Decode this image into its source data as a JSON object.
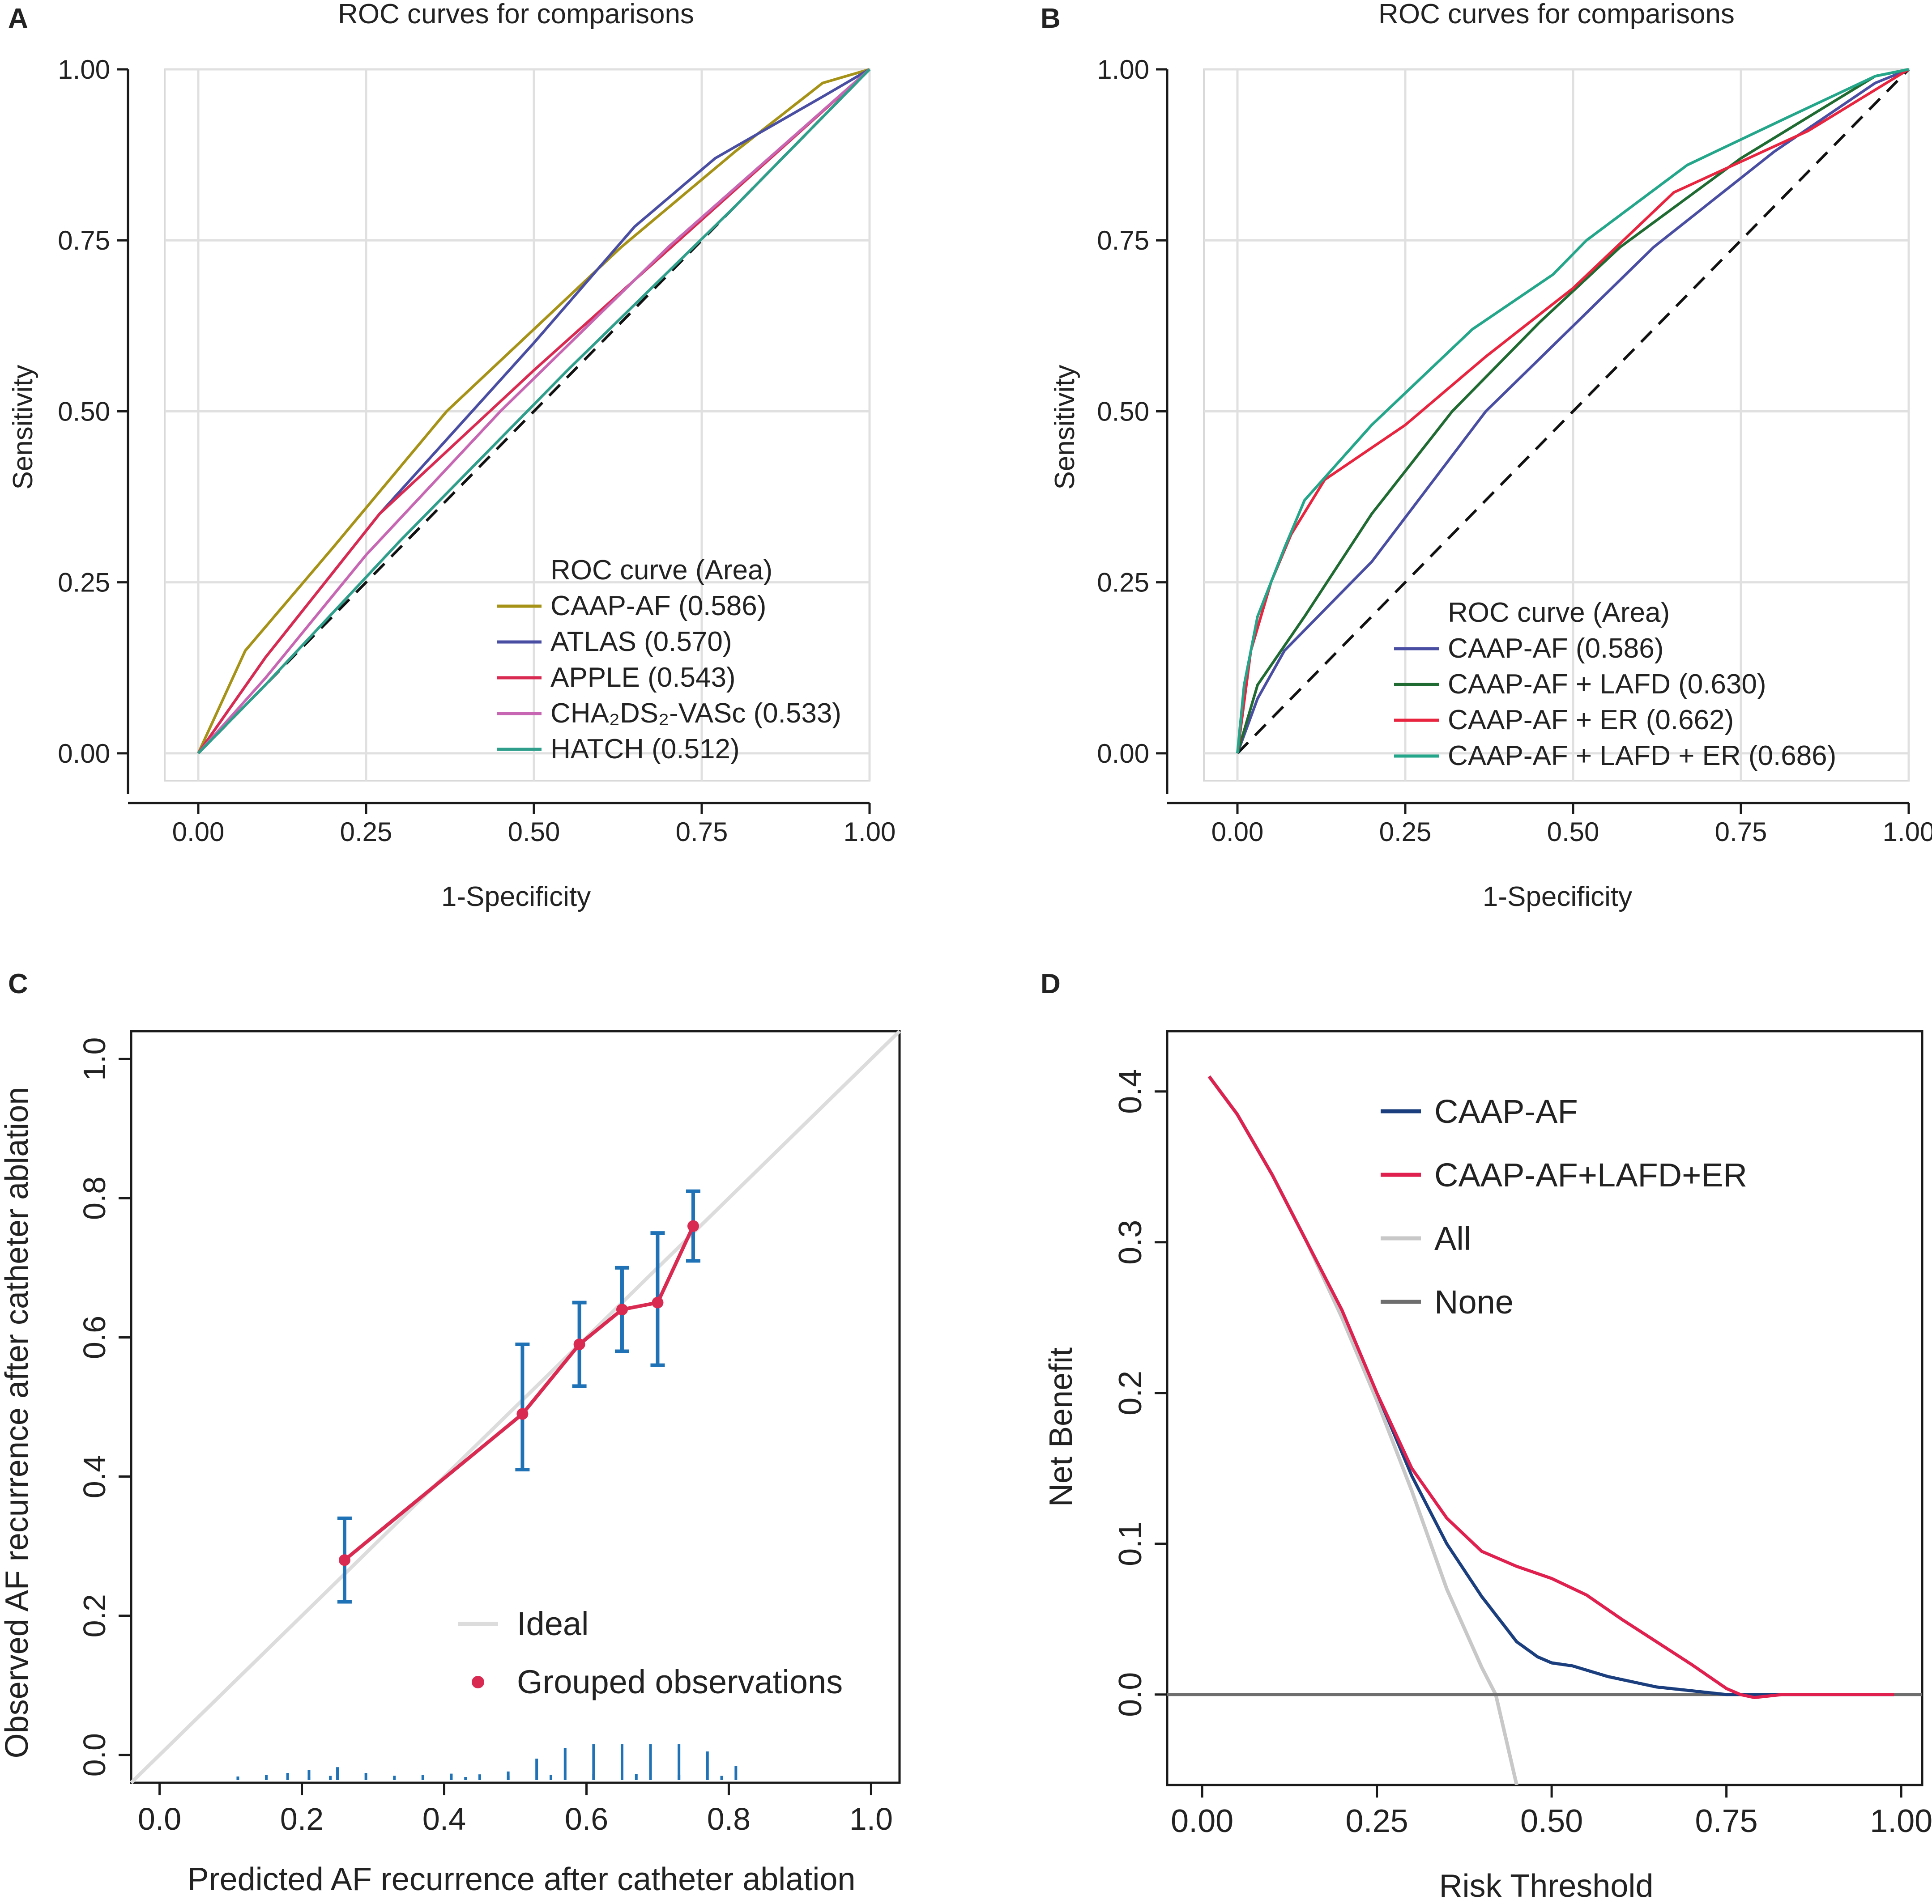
{
  "colors": {
    "olive": "#a59216",
    "indigo": "#4a4ea3",
    "crimson": "#d92a52",
    "orchid": "#c767b3",
    "teal": "#2f9f8c",
    "green": "#1f6b32",
    "red": "#e8243f",
    "sea": "#23a68a",
    "navy": "#1b3f7e",
    "pink": "#e0204e",
    "light_gray": "#c8c8c8",
    "dark_gray": "#6e6e6e",
    "blue_bar": "#1f72b6",
    "ideal": "#dcdcdc"
  },
  "chart_data": [
    {
      "panel_label": "A",
      "type": "line",
      "title": "ROC curves for comparisons",
      "xlabel": "1-Specificity",
      "ylabel": "Sensitivity",
      "xlim": [
        -0.05,
        1.0
      ],
      "ylim": [
        -0.04,
        1.0
      ],
      "xticks": [
        0,
        0.25,
        0.5,
        0.75,
        1
      ],
      "xtick_labels": [
        "0.00",
        "0.25",
        "0.50",
        "0.75",
        "1.00"
      ],
      "yticks": [
        0,
        0.25,
        0.5,
        0.75,
        1
      ],
      "ytick_labels": [
        "0.00",
        "0.25",
        "0.50",
        "0.75",
        "1.00"
      ],
      "grid": true,
      "legend_title": "ROC curve (Area)",
      "legend_position": "bottom-right",
      "reference_line": true,
      "series": [
        {
          "name": "CAAP-AF (0.586)",
          "color_key": "olive",
          "x": [
            0,
            0.07,
            0.2,
            0.37,
            0.63,
            0.8,
            0.93,
            1
          ],
          "y": [
            0,
            0.15,
            0.3,
            0.5,
            0.74,
            0.88,
            0.98,
            1
          ]
        },
        {
          "name": "ATLAS (0.570)",
          "color_key": "indigo",
          "x": [
            0,
            0.1,
            0.27,
            0.5,
            0.65,
            0.77,
            0.93,
            1
          ],
          "y": [
            0,
            0.14,
            0.35,
            0.6,
            0.77,
            0.87,
            0.96,
            1
          ]
        },
        {
          "name": "APPLE (0.543)",
          "color_key": "crimson",
          "x": [
            0,
            0.1,
            0.27,
            0.5,
            0.75,
            1
          ],
          "y": [
            0,
            0.14,
            0.35,
            0.56,
            0.78,
            1
          ]
        },
        {
          "name": "CHA₂DS₂-VASc (0.533)",
          "color_key": "orchid",
          "x": [
            0,
            0.1,
            0.25,
            0.45,
            0.7,
            1
          ],
          "y": [
            0,
            0.11,
            0.29,
            0.5,
            0.74,
            1
          ]
        },
        {
          "name": "HATCH (0.512)",
          "color_key": "teal",
          "x": [
            0,
            0.1,
            0.3,
            0.55,
            0.8,
            1
          ],
          "y": [
            0,
            0.1,
            0.31,
            0.56,
            0.8,
            1
          ]
        }
      ]
    },
    {
      "panel_label": "B",
      "type": "line",
      "title": "ROC curves for comparisons",
      "xlabel": "1-Specificity",
      "ylabel": "Sensitivity",
      "xlim": [
        -0.05,
        1.0
      ],
      "ylim": [
        -0.04,
        1.0
      ],
      "xticks": [
        0,
        0.25,
        0.5,
        0.75,
        1
      ],
      "xtick_labels": [
        "0.00",
        "0.25",
        "0.50",
        "0.75",
        "1.00"
      ],
      "yticks": [
        0,
        0.25,
        0.5,
        0.75,
        1
      ],
      "ytick_labels": [
        "0.00",
        "0.25",
        "0.50",
        "0.75",
        "1.00"
      ],
      "grid": true,
      "legend_title": "ROC curve (Area)",
      "legend_position": "bottom-right",
      "reference_line": true,
      "series": [
        {
          "name": "CAAP-AF (0.586)",
          "color_key": "indigo",
          "x": [
            0,
            0.03,
            0.07,
            0.2,
            0.37,
            0.62,
            0.8,
            0.95,
            1
          ],
          "y": [
            0,
            0.08,
            0.15,
            0.28,
            0.5,
            0.74,
            0.88,
            0.98,
            1
          ]
        },
        {
          "name": "CAAP-AF + LAFD (0.630)",
          "color_key": "green",
          "x": [
            0,
            0.03,
            0.1,
            0.2,
            0.32,
            0.45,
            0.57,
            0.75,
            0.95,
            1
          ],
          "y": [
            0,
            0.1,
            0.2,
            0.35,
            0.5,
            0.63,
            0.74,
            0.87,
            0.99,
            1
          ]
        },
        {
          "name": "CAAP-AF + ER (0.662)",
          "color_key": "red",
          "x": [
            0,
            0.02,
            0.05,
            0.08,
            0.13,
            0.25,
            0.37,
            0.5,
            0.65,
            0.85,
            1
          ],
          "y": [
            0,
            0.15,
            0.25,
            0.32,
            0.4,
            0.48,
            0.58,
            0.68,
            0.82,
            0.91,
            1
          ]
        },
        {
          "name": "CAAP-AF + LAFD + ER (0.686)",
          "color_key": "sea",
          "x": [
            0,
            0.01,
            0.03,
            0.05,
            0.07,
            0.1,
            0.2,
            0.35,
            0.47,
            0.52,
            0.67,
            0.82,
            0.95,
            1
          ],
          "y": [
            0,
            0.1,
            0.2,
            0.25,
            0.3,
            0.37,
            0.48,
            0.62,
            0.7,
            0.75,
            0.86,
            0.93,
            0.99,
            1
          ]
        }
      ]
    },
    {
      "panel_label": "C",
      "type": "calibration",
      "title": "",
      "xlabel": "Predicted AF recurrence after catheter ablation",
      "ylabel": "Observed AF recurrence after catheter ablation",
      "xlim": [
        -0.04,
        1.04
      ],
      "ylim": [
        -0.04,
        1.04
      ],
      "xticks": [
        0,
        0.2,
        0.4,
        0.6,
        0.8,
        1
      ],
      "xtick_labels": [
        "0.0",
        "0.2",
        "0.4",
        "0.6",
        "0.8",
        "1.0"
      ],
      "yticks": [
        0,
        0.2,
        0.4,
        0.6,
        0.8,
        1
      ],
      "ytick_labels": [
        "0.0",
        "0.2",
        "0.4",
        "0.6",
        "0.8",
        "1.0"
      ],
      "grid": false,
      "legend_position": "bottom-right",
      "ideal_label": "Ideal",
      "points_label": "Grouped observations",
      "points": {
        "x": [
          0.26,
          0.51,
          0.59,
          0.65,
          0.7,
          0.75
        ],
        "y": [
          0.28,
          0.49,
          0.59,
          0.64,
          0.65,
          0.76
        ],
        "ci_low": [
          0.22,
          0.41,
          0.53,
          0.58,
          0.56,
          0.71
        ],
        "ci_high": [
          0.34,
          0.59,
          0.65,
          0.7,
          0.75,
          0.81
        ]
      },
      "rug": {
        "up_x": [
          0.11,
          0.15,
          0.18,
          0.21,
          0.25,
          0.29,
          0.33,
          0.37,
          0.41,
          0.45,
          0.49,
          0.53,
          0.57,
          0.61,
          0.65,
          0.69,
          0.73,
          0.77,
          0.81
        ],
        "up_len": [
          0.005,
          0.007,
          0.01,
          0.014,
          0.018,
          0.01,
          0.006,
          0.007,
          0.009,
          0.008,
          0.012,
          0.03,
          0.045,
          0.05,
          0.05,
          0.05,
          0.05,
          0.04,
          0.02
        ],
        "down_x": [
          0.21,
          0.24,
          0.43,
          0.49,
          0.55,
          0.61,
          0.67,
          0.73,
          0.79
        ],
        "down_len": [
          0.006,
          0.008,
          0.006,
          0.008,
          0.01,
          0.012,
          0.012,
          0.01,
          0.008
        ]
      }
    },
    {
      "panel_label": "D",
      "type": "line",
      "title": "",
      "xlabel": "Risk Threshold",
      "ylabel": "Net Benefit",
      "xlim": [
        -0.05,
        1.03
      ],
      "ylim": [
        -0.06,
        0.44
      ],
      "xticks": [
        0,
        0.25,
        0.5,
        0.75,
        1
      ],
      "xtick_labels": [
        "0.00",
        "0.25",
        "0.50",
        "0.75",
        "1.00"
      ],
      "yticks": [
        0,
        0.1,
        0.2,
        0.3,
        0.4
      ],
      "ytick_labels": [
        "0.0",
        "0.1",
        "0.2",
        "0.3",
        "0.4"
      ],
      "grid": false,
      "legend_position": "top-right",
      "series": [
        {
          "name": "All",
          "color_key": "light_gray",
          "x": [
            0.01,
            0.05,
            0.1,
            0.15,
            0.2,
            0.25,
            0.3,
            0.35,
            0.4,
            0.42,
            0.45
          ],
          "y": [
            0.41,
            0.385,
            0.345,
            0.3,
            0.25,
            0.195,
            0.135,
            0.07,
            0.018,
            0.0,
            -0.06
          ]
        },
        {
          "name": "None",
          "color_key": "dark_gray",
          "x": [
            -0.05,
            1.03
          ],
          "y": [
            0,
            0
          ]
        },
        {
          "name": "CAAP-AF",
          "color_key": "navy",
          "x": [
            0.01,
            0.05,
            0.1,
            0.15,
            0.2,
            0.25,
            0.3,
            0.35,
            0.4,
            0.45,
            0.48,
            0.5,
            0.53,
            0.58,
            0.65,
            0.75,
            0.99
          ],
          "y": [
            0.41,
            0.385,
            0.345,
            0.3,
            0.255,
            0.2,
            0.145,
            0.1,
            0.065,
            0.035,
            0.025,
            0.021,
            0.019,
            0.012,
            0.005,
            0.0,
            0.0
          ]
        },
        {
          "name": "CAAP-AF+LAFD+ER",
          "color_key": "pink",
          "x": [
            0.01,
            0.05,
            0.1,
            0.15,
            0.2,
            0.25,
            0.3,
            0.35,
            0.4,
            0.45,
            0.5,
            0.55,
            0.6,
            0.65,
            0.7,
            0.75,
            0.77,
            0.79,
            0.83,
            0.99
          ],
          "y": [
            0.41,
            0.385,
            0.345,
            0.3,
            0.255,
            0.2,
            0.15,
            0.117,
            0.095,
            0.085,
            0.077,
            0.066,
            0.05,
            0.035,
            0.02,
            0.004,
            0.0,
            -0.002,
            0.0,
            0.0
          ]
        }
      ]
    }
  ]
}
